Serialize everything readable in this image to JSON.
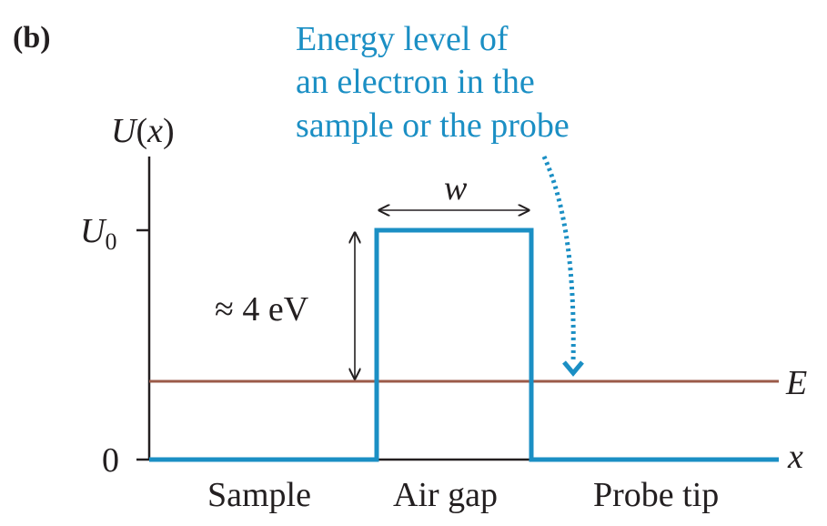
{
  "panel_label": "(b)",
  "annotation": {
    "lines": [
      "Energy level of",
      "an electron in the",
      "sample or the probe"
    ]
  },
  "axes": {
    "y_label_main": "U",
    "y_label_paren_open": "(",
    "y_label_var": "x",
    "y_label_paren_close": ")",
    "x_label": "x",
    "y_tick_U0_main": "U",
    "y_tick_U0_sub": "0",
    "y_tick_zero": "0"
  },
  "labels": {
    "width": "w",
    "barrier_height": "≈ 4 eV",
    "energy": "E"
  },
  "regions": {
    "sample": "Sample",
    "air_gap": "Air gap",
    "probe_tip": "Probe tip"
  },
  "colors": {
    "barrier": "#1b8fc4",
    "energy_line": "#9b5a48",
    "axis": "#231f20",
    "annotation_text": "#1b8fc4"
  }
}
